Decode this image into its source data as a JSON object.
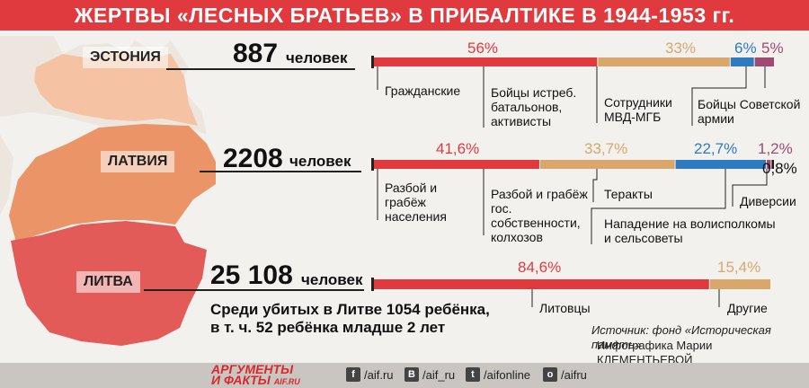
{
  "title": "ЖЕРТВЫ «ЛЕСНЫХ БРАТЬЕВ» В ПРИБАЛТИКЕ В 1944-1953 гг.",
  "colors": {
    "red": "#e03a3e",
    "tan": "#d9a66c",
    "blue": "#2f7bbf",
    "purple": "#a04a73",
    "black": "#1a1a1a",
    "estonia_map": "#f5c3a3",
    "latvia_map": "#eb9467",
    "lithuania_map": "#e35b59"
  },
  "chart_data": [
    {
      "type": "bar",
      "country": "ЭСТОНИЯ",
      "total": "887",
      "unit": "человек",
      "series": [
        {
          "label": "Гражданские",
          "value": 56,
          "pct_text": "56%",
          "color": "#e03a3e"
        },
        {
          "label": "Бойцы истреб. батальонов, активисты",
          "value": 33,
          "pct_text": "33%",
          "color": "#d9a66c"
        },
        {
          "label": "Сотрудники МВД-МГБ",
          "value": 6,
          "pct_text": "6%",
          "color": "#2f7bbf"
        },
        {
          "label": "Бойцы Советской армии",
          "value": 5,
          "pct_text": "5%",
          "color": "#a04a73"
        }
      ]
    },
    {
      "type": "bar",
      "country": "ЛАТВИЯ",
      "total": "2208",
      "unit": "человек",
      "series": [
        {
          "label": "Разбой и грабёж населения",
          "value": 41.6,
          "pct_text": "41,6%",
          "color": "#e03a3e"
        },
        {
          "label": "Разбой и грабёж гос. собственности, колхозов",
          "value": 33.7,
          "pct_text": "33,7%",
          "color": "#d9a66c"
        },
        {
          "label": "Теракты",
          "value": 22.7,
          "pct_text": "22,7%",
          "color": "#2f7bbf"
        },
        {
          "label": "Нападение на волисполкомы и сельсоветы",
          "value": 1.2,
          "pct_text": "1,2%",
          "color": "#a04a73"
        },
        {
          "label": "Диверсии",
          "value": 0.8,
          "pct_text": "0,8%",
          "color": "#1a1a1a"
        }
      ]
    },
    {
      "type": "bar",
      "country": "ЛИТВА",
      "total": "25 108",
      "unit": "человек",
      "series": [
        {
          "label": "Литовцы",
          "value": 84.6,
          "pct_text": "84,6%",
          "color": "#e03a3e"
        },
        {
          "label": "Другие",
          "value": 15.4,
          "pct_text": "15,4%",
          "color": "#d9a66c"
        }
      ]
    }
  ],
  "note_line1": "Среди убитых в Литве 1054 ребёнка,",
  "note_line2": "в т. ч. 52 ребёнка младше 2 лет",
  "source_line1": "Источник: фонд «Историческая память»",
  "source_line2": "Инфографика Марии КЛЕМЕНТЬЕВОЙ",
  "footer": {
    "logo_line1": "АРГУМЕНТЫ",
    "logo_line2": "И ФАКТЫ",
    "logo_site": "AIF.RU",
    "social": [
      {
        "icon": "facebook-icon",
        "glyph": "f",
        "text": "/aif.ru"
      },
      {
        "icon": "vk-icon",
        "glyph": "В",
        "text": "/aif_ru"
      },
      {
        "icon": "twitter-icon",
        "glyph": "t",
        "text": "/aifonline"
      },
      {
        "icon": "odnoklassniki-icon",
        "glyph": "о",
        "text": "/aifru"
      }
    ]
  }
}
